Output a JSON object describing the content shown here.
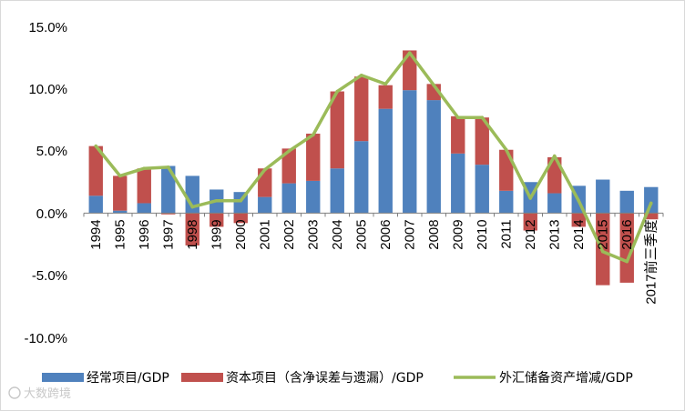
{
  "chart_data": {
    "type": "bar",
    "title": "",
    "xlabel": "",
    "ylabel": "",
    "ylim": [
      -10,
      15
    ],
    "yticks": [
      15,
      10,
      5,
      0,
      -5,
      -10
    ],
    "ytick_labels": [
      "15.0%",
      "10.0%",
      "5.0%",
      "0.0%",
      "-5.0%",
      "-10.0%"
    ],
    "categories": [
      "1994",
      "1995",
      "1996",
      "1997",
      "1998",
      "1999",
      "2000",
      "2001",
      "2002",
      "2003",
      "2004",
      "2005",
      "2006",
      "2007",
      "2008",
      "2009",
      "2010",
      "2011",
      "2012",
      "2013",
      "2014",
      "2015",
      "2016",
      "2017前三季度"
    ],
    "stacked": true,
    "grid": false,
    "legend_position": "bottom",
    "series": [
      {
        "name": "经常项目/GDP",
        "kind": "bar",
        "color": "#4f81bd",
        "values": [
          1.4,
          0.2,
          0.8,
          3.8,
          3.0,
          1.9,
          1.7,
          1.3,
          2.4,
          2.6,
          3.6,
          5.8,
          8.4,
          9.9,
          9.1,
          4.8,
          3.9,
          1.8,
          2.5,
          1.6,
          2.2,
          2.7,
          1.8,
          2.1
        ]
      },
      {
        "name": "资本项目（含净误差与遗漏）/GDP",
        "kind": "bar",
        "color": "#c0504d",
        "values": [
          4.0,
          2.8,
          2.8,
          -0.1,
          -2.6,
          -1.1,
          -0.8,
          2.3,
          2.8,
          3.8,
          6.2,
          5.2,
          1.9,
          3.2,
          1.3,
          3.0,
          3.8,
          3.3,
          -1.4,
          2.9,
          -1.1,
          -5.8,
          -5.6,
          -0.5
        ]
      },
      {
        "name": "外汇储备资产增减/GDP",
        "kind": "line",
        "color": "#9bbb59",
        "values": [
          5.4,
          3.0,
          3.6,
          3.7,
          0.5,
          1.0,
          1.0,
          3.5,
          5.0,
          6.3,
          9.8,
          11.1,
          10.4,
          12.9,
          10.3,
          7.7,
          7.7,
          5.1,
          1.2,
          4.6,
          1.0,
          -3.1,
          -3.9,
          0.8
        ]
      }
    ]
  },
  "watermark": "大数跨境"
}
